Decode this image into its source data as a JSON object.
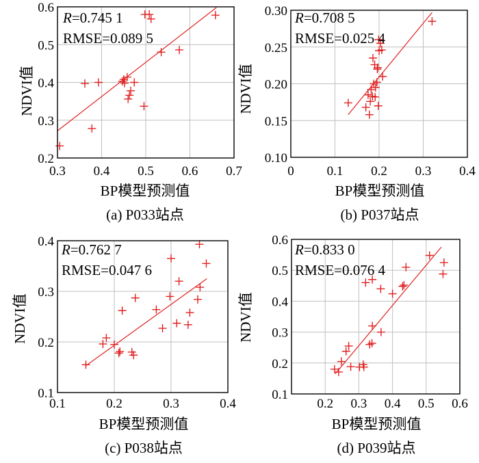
{
  "chart_data": [
    {
      "type": "scatter",
      "caption": "(a) P033站点",
      "xlabel": "BP模型预测值",
      "ylabel": "NDVI值",
      "r_label": "R",
      "r_value": "=0.745 1",
      "rmse_text": "RMSE=0.089 5",
      "xlim": [
        0.3,
        0.7
      ],
      "ylim": [
        0.2,
        0.6
      ],
      "xticks": [
        "0.3",
        "0.4",
        "0.5",
        "0.6",
        "0.7"
      ],
      "yticks": [
        "0.2",
        "0.3",
        "0.4",
        "0.5",
        "0.6"
      ],
      "grid": true,
      "fit_line": [
        [
          0.3,
          0.272
        ],
        [
          0.66,
          0.598
        ]
      ],
      "points": [
        [
          0.305,
          0.232
        ],
        [
          0.362,
          0.397
        ],
        [
          0.378,
          0.278
        ],
        [
          0.393,
          0.4
        ],
        [
          0.447,
          0.403
        ],
        [
          0.45,
          0.408
        ],
        [
          0.452,
          0.398
        ],
        [
          0.458,
          0.414
        ],
        [
          0.46,
          0.356
        ],
        [
          0.463,
          0.366
        ],
        [
          0.466,
          0.378
        ],
        [
          0.474,
          0.4
        ],
        [
          0.496,
          0.337
        ],
        [
          0.498,
          0.58
        ],
        [
          0.508,
          0.58
        ],
        [
          0.512,
          0.568
        ],
        [
          0.535,
          0.48
        ],
        [
          0.576,
          0.486
        ],
        [
          0.658,
          0.578
        ]
      ]
    },
    {
      "type": "scatter",
      "caption": "(b) P037站点",
      "xlabel": "BP模型预测值",
      "ylabel": "NDVI值",
      "r_label": "R",
      "r_value": "=0.708 5",
      "rmse_text": "RMSE=0.025 4",
      "xlim": [
        0,
        0.4
      ],
      "ylim": [
        0.1,
        0.3
      ],
      "xticks": [
        "0",
        "0.1",
        "0.2",
        "0.3",
        "0.4"
      ],
      "yticks": [
        "0.10",
        "0.15",
        "0.20",
        "0.25",
        "0.30"
      ],
      "grid": true,
      "fit_line": [
        [
          0.13,
          0.158
        ],
        [
          0.32,
          0.297
        ]
      ],
      "points": [
        [
          0.13,
          0.174
        ],
        [
          0.17,
          0.168
        ],
        [
          0.175,
          0.185
        ],
        [
          0.178,
          0.158
        ],
        [
          0.18,
          0.176
        ],
        [
          0.182,
          0.192
        ],
        [
          0.185,
          0.183
        ],
        [
          0.186,
          0.235
        ],
        [
          0.188,
          0.2
        ],
        [
          0.19,
          0.226
        ],
        [
          0.191,
          0.182
        ],
        [
          0.192,
          0.195
        ],
        [
          0.195,
          0.202
        ],
        [
          0.196,
          0.22
        ],
        [
          0.197,
          0.222
        ],
        [
          0.198,
          0.17
        ],
        [
          0.199,
          0.26
        ],
        [
          0.2,
          0.245
        ],
        [
          0.203,
          0.255
        ],
        [
          0.206,
          0.246
        ],
        [
          0.208,
          0.21
        ],
        [
          0.32,
          0.285
        ]
      ]
    },
    {
      "type": "scatter",
      "caption": "(c) P038站点",
      "xlabel": "BP模型预测值",
      "ylabel": "NDVI值",
      "r_label": "R",
      "r_value": "=0.762 7",
      "rmse_text": "RMSE=0.047 6",
      "xlim": [
        0.1,
        0.4
      ],
      "ylim": [
        0.1,
        0.4
      ],
      "xticks": [
        "0.1",
        "0.2",
        "0.3",
        "0.4"
      ],
      "yticks": [
        "0.1",
        "0.2",
        "0.3",
        "0.4"
      ],
      "grid": true,
      "fit_line": [
        [
          0.15,
          0.153
        ],
        [
          0.363,
          0.325
        ]
      ],
      "points": [
        [
          0.15,
          0.155
        ],
        [
          0.18,
          0.196
        ],
        [
          0.186,
          0.208
        ],
        [
          0.2,
          0.195
        ],
        [
          0.208,
          0.178
        ],
        [
          0.21,
          0.181
        ],
        [
          0.214,
          0.262
        ],
        [
          0.231,
          0.18
        ],
        [
          0.234,
          0.174
        ],
        [
          0.237,
          0.287
        ],
        [
          0.274,
          0.264
        ],
        [
          0.285,
          0.227
        ],
        [
          0.298,
          0.29
        ],
        [
          0.3,
          0.365
        ],
        [
          0.31,
          0.237
        ],
        [
          0.314,
          0.32
        ],
        [
          0.33,
          0.234
        ],
        [
          0.333,
          0.258
        ],
        [
          0.347,
          0.284
        ],
        [
          0.35,
          0.393
        ],
        [
          0.351,
          0.308
        ],
        [
          0.362,
          0.355
        ]
      ]
    },
    {
      "type": "scatter",
      "caption": "(d) P039站点",
      "xlabel": "BP模型预测值",
      "ylabel": "NDVI值",
      "r_label": "R",
      "r_value": "=0.833 0",
      "rmse_text": "RMSE=0.076 4",
      "xlim": [
        0.1,
        0.6
      ],
      "ylim": [
        0.1,
        0.6
      ],
      "xticks": [
        "0.2",
        "0.3",
        "0.4",
        "0.5",
        "0.6"
      ],
      "yticks": [
        "0.1",
        "0.2",
        "0.3",
        "0.4",
        "0.5",
        "0.6"
      ],
      "grid": true,
      "fit_line": [
        [
          0.23,
          0.165
        ],
        [
          0.545,
          0.575
        ]
      ],
      "points": [
        [
          0.228,
          0.18
        ],
        [
          0.24,
          0.171
        ],
        [
          0.248,
          0.205
        ],
        [
          0.262,
          0.238
        ],
        [
          0.27,
          0.255
        ],
        [
          0.276,
          0.188
        ],
        [
          0.302,
          0.187
        ],
        [
          0.313,
          0.195
        ],
        [
          0.315,
          0.187
        ],
        [
          0.32,
          0.46
        ],
        [
          0.332,
          0.26
        ],
        [
          0.339,
          0.264
        ],
        [
          0.34,
          0.32
        ],
        [
          0.34,
          0.47
        ],
        [
          0.365,
          0.44
        ],
        [
          0.366,
          0.3
        ],
        [
          0.4,
          0.424
        ],
        [
          0.43,
          0.448
        ],
        [
          0.434,
          0.452
        ],
        [
          0.44,
          0.51
        ],
        [
          0.51,
          0.548
        ],
        [
          0.55,
          0.488
        ],
        [
          0.553,
          0.525
        ]
      ]
    }
  ]
}
